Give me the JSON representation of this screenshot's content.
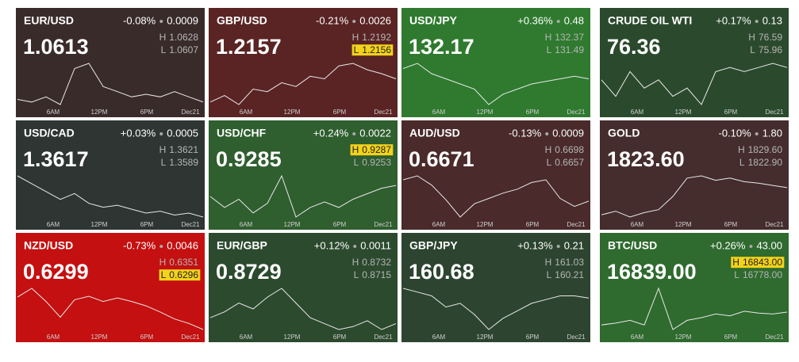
{
  "labels": {
    "high": "H",
    "low": "L"
  },
  "time_labels": [
    "6AM",
    "12PM",
    "6PM",
    "Dec21"
  ],
  "tiles": [
    {
      "symbol": "EUR/USD",
      "change": "-0.08%",
      "change_abs": "0.0009",
      "price": "1.0613",
      "high": "1.0628",
      "low": "1.0607",
      "color": "#3a2b2b",
      "spark": [
        1.0612,
        1.0611,
        1.0613,
        1.061,
        1.0624,
        1.0626,
        1.0617,
        1.0615,
        1.0613,
        1.0614,
        1.0613,
        1.0615,
        1.0613,
        1.0611
      ]
    },
    {
      "symbol": "GBP/USD",
      "change": "-0.21%",
      "change_abs": "0.0026",
      "price": "1.2157",
      "high": "1.2192",
      "low": "1.2156",
      "color": "#5a2424",
      "highlight": "low",
      "spark": [
        1.216,
        1.2165,
        1.2158,
        1.217,
        1.2168,
        1.2175,
        1.2172,
        1.218,
        1.2178,
        1.2188,
        1.219,
        1.2185,
        1.2182,
        1.2178
      ]
    },
    {
      "symbol": "USD/JPY",
      "change": "+0.36%",
      "change_abs": "0.48",
      "price": "132.17",
      "high": "132.37",
      "low": "131.49",
      "color": "#2f7a2f",
      "spark": [
        132.2,
        132.3,
        132.1,
        132,
        131.9,
        131.8,
        131.5,
        131.7,
        131.8,
        131.9,
        131.95,
        132,
        132.05,
        132
      ]
    },
    {
      "symbol": "CRUDE OIL WTI",
      "change": "+0.17%",
      "change_abs": "0.13",
      "price": "76.36",
      "high": "76.59",
      "low": "75.96",
      "color": "#2b4a2d",
      "spark": [
        76.3,
        76.1,
        76.4,
        76.2,
        76.3,
        76.1,
        76.2,
        76,
        76.4,
        76.45,
        76.4,
        76.45,
        76.5,
        76.45
      ]
    },
    {
      "symbol": "USD/CAD",
      "change": "+0.03%",
      "change_abs": "0.0005",
      "price": "1.3617",
      "high": "1.3621",
      "low": "1.3589",
      "color": "#2e3532",
      "spark": [
        1.3612,
        1.3608,
        1.3604,
        1.36,
        1.3603,
        1.3598,
        1.3596,
        1.3597,
        1.3595,
        1.3593,
        1.3594,
        1.3592,
        1.3593,
        1.3591
      ]
    },
    {
      "symbol": "USD/CHF",
      "change": "+0.24%",
      "change_abs": "0.0022",
      "price": "0.9285",
      "high": "0.9287",
      "low": "0.9253",
      "color": "#2f5e2f",
      "highlight": "high",
      "spark": [
        0.927,
        0.9262,
        0.9268,
        0.9258,
        0.9265,
        0.9285,
        0.9255,
        0.9262,
        0.9266,
        0.9262,
        0.9268,
        0.9272,
        0.9276,
        0.9278
      ]
    },
    {
      "symbol": "AUD/USD",
      "change": "-0.13%",
      "change_abs": "0.0009",
      "price": "0.6671",
      "high": "0.6698",
      "low": "0.6657",
      "color": "#4a2a2a",
      "spark": [
        0.669,
        0.6693,
        0.6686,
        0.6675,
        0.6662,
        0.6672,
        0.6676,
        0.668,
        0.6683,
        0.6688,
        0.669,
        0.6676,
        0.667,
        0.6674
      ]
    },
    {
      "symbol": "GOLD",
      "change": "-0.10%",
      "change_abs": "1.80",
      "price": "1823.60",
      "high": "1829.60",
      "low": "1822.90",
      "color": "#452d2d",
      "spark": [
        1823.5,
        1824,
        1823.2,
        1823.8,
        1824.2,
        1826,
        1828.5,
        1828.8,
        1828.2,
        1828.5,
        1828,
        1827.8,
        1827.5,
        1827.2
      ]
    },
    {
      "symbol": "NZD/USD",
      "change": "-0.73%",
      "change_abs": "0.0046",
      "price": "0.6299",
      "high": "0.6351",
      "low": "0.6296",
      "color": "#c41010",
      "highlight": "low",
      "spark": [
        0.6335,
        0.6345,
        0.633,
        0.6312,
        0.6332,
        0.6336,
        0.633,
        0.6334,
        0.633,
        0.6325,
        0.6318,
        0.631,
        0.6305,
        0.6298
      ]
    },
    {
      "symbol": "EUR/GBP",
      "change": "+0.12%",
      "change_abs": "0.0011",
      "price": "0.8729",
      "high": "0.8732",
      "low": "0.8715",
      "color": "#2c4a2e",
      "spark": [
        0.872,
        0.8722,
        0.8725,
        0.8723,
        0.8727,
        0.873,
        0.8725,
        0.872,
        0.8718,
        0.8716,
        0.8717,
        0.8719,
        0.8716,
        0.8718
      ]
    },
    {
      "symbol": "GBP/JPY",
      "change": "+0.13%",
      "change_abs": "0.21",
      "price": "160.68",
      "high": "161.03",
      "low": "160.21",
      "color": "#2d4530",
      "spark": [
        160.85,
        160.8,
        160.75,
        160.6,
        160.65,
        160.5,
        160.3,
        160.45,
        160.55,
        160.65,
        160.7,
        160.75,
        160.75,
        160.72
      ]
    },
    {
      "symbol": "BTC/USD",
      "change": "+0.26%",
      "change_abs": "43.00",
      "price": "16839.00",
      "high": "16843.00",
      "low": "16778.00",
      "color": "#2f6a2f",
      "highlight": "high",
      "spark": [
        16800,
        16802,
        16805,
        16800,
        16840,
        16795,
        16805,
        16808,
        16812,
        16810,
        16815,
        16813,
        16812,
        16814
      ]
    }
  ]
}
